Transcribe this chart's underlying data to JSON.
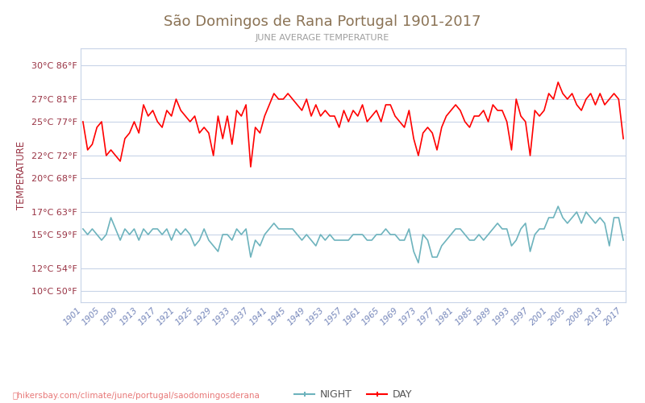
{
  "title": "São Domingos de Rana Portugal 1901-2017",
  "subtitle": "JUNE AVERAGE TEMPERATURE",
  "ylabel": "TEMPERATURE",
  "years": [
    1901,
    1902,
    1903,
    1904,
    1905,
    1906,
    1907,
    1908,
    1909,
    1910,
    1911,
    1912,
    1913,
    1914,
    1915,
    1916,
    1917,
    1918,
    1919,
    1920,
    1921,
    1922,
    1923,
    1924,
    1925,
    1926,
    1927,
    1928,
    1929,
    1930,
    1931,
    1932,
    1933,
    1934,
    1935,
    1936,
    1937,
    1938,
    1939,
    1940,
    1941,
    1942,
    1943,
    1944,
    1945,
    1946,
    1947,
    1948,
    1949,
    1950,
    1951,
    1952,
    1953,
    1954,
    1955,
    1956,
    1957,
    1958,
    1959,
    1960,
    1961,
    1962,
    1963,
    1964,
    1965,
    1966,
    1967,
    1968,
    1969,
    1970,
    1971,
    1972,
    1973,
    1974,
    1975,
    1976,
    1977,
    1978,
    1979,
    1980,
    1981,
    1982,
    1983,
    1984,
    1985,
    1986,
    1987,
    1988,
    1989,
    1990,
    1991,
    1992,
    1993,
    1994,
    1995,
    1996,
    1997,
    1998,
    1999,
    2000,
    2001,
    2002,
    2003,
    2004,
    2005,
    2006,
    2007,
    2008,
    2009,
    2010,
    2011,
    2012,
    2013,
    2014,
    2015,
    2016,
    2017
  ],
  "day_temps": [
    25.0,
    22.5,
    23.0,
    24.5,
    25.0,
    22.0,
    22.5,
    22.0,
    21.5,
    23.5,
    24.0,
    25.0,
    24.0,
    26.5,
    25.5,
    26.0,
    25.0,
    24.5,
    26.0,
    25.5,
    27.0,
    26.0,
    25.5,
    25.0,
    25.5,
    24.0,
    24.5,
    24.0,
    22.0,
    25.5,
    23.5,
    25.5,
    23.0,
    26.0,
    25.5,
    26.5,
    21.0,
    24.5,
    24.0,
    25.5,
    26.5,
    27.5,
    27.0,
    27.0,
    27.5,
    27.0,
    26.5,
    26.0,
    27.0,
    25.5,
    26.5,
    25.5,
    26.0,
    25.5,
    25.5,
    24.5,
    26.0,
    25.0,
    26.0,
    25.5,
    26.5,
    25.0,
    25.5,
    26.0,
    25.0,
    26.5,
    26.5,
    25.5,
    25.0,
    24.5,
    26.0,
    23.5,
    22.0,
    24.0,
    24.5,
    24.0,
    22.5,
    24.5,
    25.5,
    26.0,
    26.5,
    26.0,
    25.0,
    24.5,
    25.5,
    25.5,
    26.0,
    25.0,
    26.5,
    26.0,
    26.0,
    25.0,
    22.5,
    27.0,
    25.5,
    25.0,
    22.0,
    26.0,
    25.5,
    26.0,
    27.5,
    27.0,
    28.5,
    27.5,
    27.0,
    27.5,
    26.5,
    26.0,
    27.0,
    27.5,
    26.5,
    27.5,
    26.5,
    27.0,
    27.5,
    27.0,
    23.5
  ],
  "night_temps": [
    15.5,
    15.0,
    15.5,
    15.0,
    14.5,
    15.0,
    16.5,
    15.5,
    14.5,
    15.5,
    15.0,
    15.5,
    14.5,
    15.5,
    15.0,
    15.5,
    15.5,
    15.0,
    15.5,
    14.5,
    15.5,
    15.0,
    15.5,
    15.0,
    14.0,
    14.5,
    15.5,
    14.5,
    14.0,
    13.5,
    15.0,
    15.0,
    14.5,
    15.5,
    15.0,
    15.5,
    13.0,
    14.5,
    14.0,
    15.0,
    15.5,
    16.0,
    15.5,
    15.5,
    15.5,
    15.5,
    15.0,
    14.5,
    15.0,
    14.5,
    14.0,
    15.0,
    14.5,
    15.0,
    14.5,
    14.5,
    14.5,
    14.5,
    15.0,
    15.0,
    15.0,
    14.5,
    14.5,
    15.0,
    15.0,
    15.5,
    15.0,
    15.0,
    14.5,
    14.5,
    15.5,
    13.5,
    12.5,
    15.0,
    14.5,
    13.0,
    13.0,
    14.0,
    14.5,
    15.0,
    15.5,
    15.5,
    15.0,
    14.5,
    14.5,
    15.0,
    14.5,
    15.0,
    15.5,
    16.0,
    15.5,
    15.5,
    14.0,
    14.5,
    15.5,
    16.0,
    13.5,
    15.0,
    15.5,
    15.5,
    16.5,
    16.5,
    17.5,
    16.5,
    16.0,
    16.5,
    17.0,
    16.0,
    17.0,
    16.5,
    16.0,
    16.5,
    16.0,
    14.0,
    16.5,
    16.5,
    14.5
  ],
  "day_color": "#ff0000",
  "night_color": "#6db3bd",
  "background_color": "#ffffff",
  "grid_color": "#c8d4e8",
  "title_color": "#8B7355",
  "subtitle_color": "#9e9e9e",
  "label_color": "#993344",
  "ytick_label_color": "#993344",
  "xtick_color": "#7788bb",
  "legend_text_color": "#555555",
  "yticks_celsius": [
    10,
    12,
    15,
    17,
    20,
    22,
    25,
    27,
    30
  ],
  "yticks_fahrenheit": [
    50,
    54,
    59,
    63,
    68,
    72,
    77,
    81,
    86
  ],
  "ymin": 9,
  "ymax": 31.5,
  "watermark": "hikersbay.com/climate/june/portugal/saodomingosderana",
  "legend_night": "NIGHT",
  "legend_day": "DAY",
  "xtick_years": [
    1901,
    1905,
    1909,
    1913,
    1917,
    1921,
    1925,
    1929,
    1933,
    1937,
    1941,
    1945,
    1949,
    1953,
    1957,
    1961,
    1965,
    1969,
    1973,
    1977,
    1981,
    1985,
    1989,
    1993,
    1997,
    2001,
    2005,
    2009,
    2013,
    2017
  ]
}
